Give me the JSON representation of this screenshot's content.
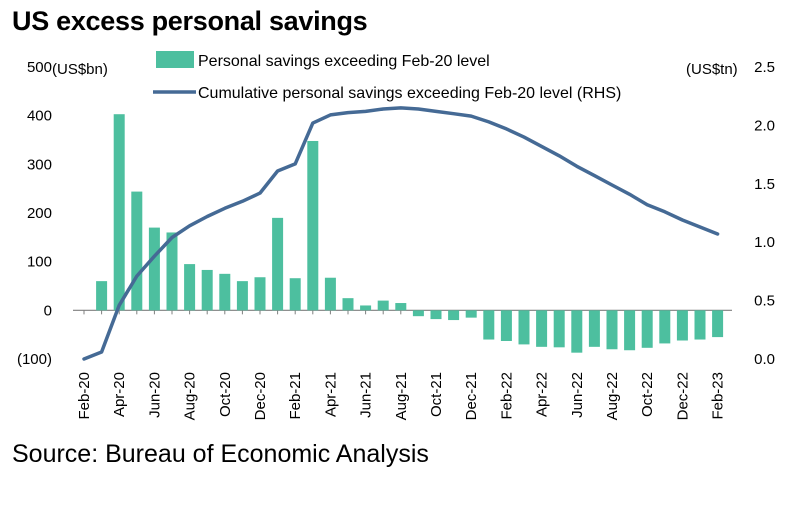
{
  "title": "US excess personal savings",
  "source": "Source: Bureau of Economic Analysis",
  "colors": {
    "bars": "#4dbf9f",
    "line": "#456a95",
    "axis": "#7f7f7f"
  },
  "chart_data": {
    "type": "bar+line",
    "left_axis": {
      "unit_label": "(US$bn)",
      "range": [
        -100,
        500
      ],
      "ticks": [
        500,
        400,
        300,
        200,
        100,
        0,
        -100
      ],
      "tick_labels": [
        "500",
        "400",
        "300",
        "200",
        "100",
        "0",
        "(100)"
      ]
    },
    "right_axis": {
      "unit_label": "(US$tn)",
      "range": [
        0,
        2.5
      ],
      "ticks": [
        2.5,
        2.0,
        1.5,
        1.0,
        0.5,
        0.0
      ],
      "tick_labels": [
        "2.5",
        "2.0",
        "1.5",
        "1.0",
        "0.5",
        "0.0"
      ]
    },
    "x": [
      "Feb-20",
      "Mar-20",
      "Apr-20",
      "May-20",
      "Jun-20",
      "Jul-20",
      "Aug-20",
      "Sep-20",
      "Oct-20",
      "Nov-20",
      "Dec-20",
      "Jan-21",
      "Feb-21",
      "Mar-21",
      "Apr-21",
      "May-21",
      "Jun-21",
      "Jul-21",
      "Aug-21",
      "Sep-21",
      "Oct-21",
      "Nov-21",
      "Dec-21",
      "Jan-22",
      "Feb-22",
      "Mar-22",
      "Apr-22",
      "May-22",
      "Jun-22",
      "Jul-22",
      "Aug-22",
      "Sep-22",
      "Oct-22",
      "Nov-22",
      "Dec-22",
      "Jan-23",
      "Feb-23"
    ],
    "x_tick_labels": [
      "Feb-20",
      "Apr-20",
      "Jun-20",
      "Aug-20",
      "Oct-20",
      "Dec-20",
      "Feb-21",
      "Apr-21",
      "Jun-21",
      "Aug-21",
      "Oct-21",
      "Dec-21",
      "Feb-22",
      "Apr-22",
      "Jun-22",
      "Aug-22",
      "Oct-22",
      "Dec-22",
      "Feb-23"
    ],
    "series": [
      {
        "name": "Personal savings exceeding Feb-20 level",
        "type": "bar",
        "axis": "left",
        "values": [
          0,
          60,
          403,
          244,
          170,
          160,
          95,
          83,
          75,
          60,
          68,
          190,
          66,
          348,
          67,
          25,
          10,
          20,
          15,
          -12,
          -18,
          -20,
          -15,
          -60,
          -63,
          -70,
          -75,
          -76,
          -87,
          -75,
          -80,
          -82,
          -77,
          -68,
          -62,
          -60,
          -55
        ]
      },
      {
        "name": "Cumulative personal savings exceeding Feb-20 level (RHS)",
        "type": "line",
        "axis": "right",
        "values": [
          0.0,
          0.06,
          0.46,
          0.71,
          0.88,
          1.04,
          1.14,
          1.22,
          1.29,
          1.35,
          1.42,
          1.61,
          1.67,
          2.02,
          2.09,
          2.11,
          2.12,
          2.14,
          2.15,
          2.14,
          2.12,
          2.1,
          2.08,
          2.03,
          1.97,
          1.9,
          1.82,
          1.74,
          1.65,
          1.57,
          1.49,
          1.41,
          1.32,
          1.26,
          1.19,
          1.13,
          1.07
        ]
      }
    ],
    "legend": "top-center",
    "grid": false
  }
}
